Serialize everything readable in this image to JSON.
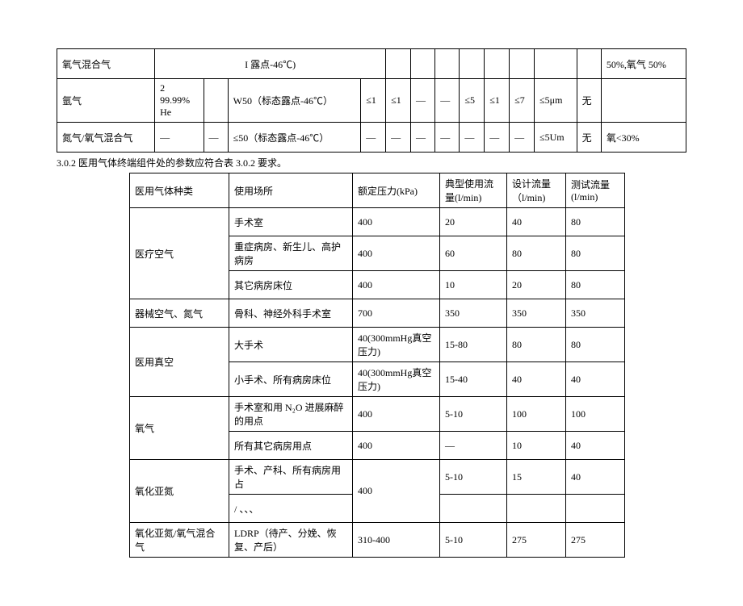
{
  "table1": {
    "rows": [
      {
        "c0": "氧气混合气",
        "c1_colspan": "I 露点-46℃)",
        "c13": "50%,氧气 50%"
      },
      {
        "c0": "氩气",
        "c1": "2\n99.99%\nHe",
        "c2": "",
        "c3": "W50（标态露点-46℃）",
        "c4": "≤1",
        "c5": "≤1",
        "c6": "—",
        "c7": "—",
        "c8": "≤5",
        "c9": "≤1",
        "c10": "≤7",
        "c11": "≤5μm",
        "c12": "无",
        "c13": ""
      },
      {
        "c0": "氮气/氧气混合气",
        "c1": "—",
        "c2": "—",
        "c3": "≤50（标态露点-46℃）",
        "c4": "—",
        "c5": "—",
        "c6": "—",
        "c7": "—",
        "c8": "—",
        "c9": "—",
        "c10": "—",
        "c11": "≤5Um",
        "c12": "无",
        "c13": "氧<30%"
      }
    ]
  },
  "caption": "3.0.2 医用气体终端组件处的参数应符合表 3.0.2 要求。",
  "table2": {
    "headers": {
      "h0": "医用气体种类",
      "h1": "使用场所",
      "h2": "额定压力(kPa)",
      "h3": "典型使用流量(l/min)",
      "h4": "设计流量（l/min)",
      "h5": "测试流量(l/min)"
    },
    "groups": [
      {
        "name": "医疗空气",
        "rows": [
          {
            "b": "手术室",
            "c": "400",
            "d": "20",
            "e": "40",
            "f": "80"
          },
          {
            "b": "重症病房、新生儿、高护病房",
            "c": "400",
            "d": "60",
            "e": "80",
            "f": "80"
          },
          {
            "b": "其它病房床位",
            "c": "400",
            "d": "10",
            "e": "20",
            "f": "80"
          }
        ]
      },
      {
        "name": "器械空气、氮气",
        "rows": [
          {
            "b": "骨科、神经外科手术室",
            "c": "700",
            "d": "350",
            "e": "350",
            "f": "350"
          }
        ]
      },
      {
        "name": "医用真空",
        "rows": [
          {
            "b": "大手术",
            "c": "40(300mmHg真空压力)",
            "d": "15-80",
            "e": "80",
            "f": "80"
          },
          {
            "b": "小手术、所有病房床位",
            "c": "40(300mmHg真空压力)",
            "d": "15-40",
            "e": "40",
            "f": "40"
          }
        ]
      },
      {
        "name": "氧气",
        "rows": [
          {
            "b": "手术室和用 N₂O 进展麻醉的用点",
            "c": "400",
            "d": "5-10",
            "e": "100",
            "f": "100"
          },
          {
            "b": "所有其它病房用点",
            "c": "400",
            "d": "—",
            "e": "10",
            "f": "40"
          }
        ]
      },
      {
        "name": "氧化亚氮",
        "rows": [
          {
            "b": "手术、产科、所有病房用占",
            "c": "",
            "d": "5-10",
            "e": "15",
            "f": "40"
          },
          {
            "b": "/ 、、、",
            "c": "400",
            "d": "",
            "e": "",
            "f": ""
          }
        ]
      },
      {
        "name": "氧化亚氮/氧气混合气",
        "rows": [
          {
            "b": "LDRP（待产、分娩、恢复、产后）",
            "c": "310-400",
            "d": "5-10",
            "e": "275",
            "f": "275"
          }
        ]
      }
    ]
  }
}
